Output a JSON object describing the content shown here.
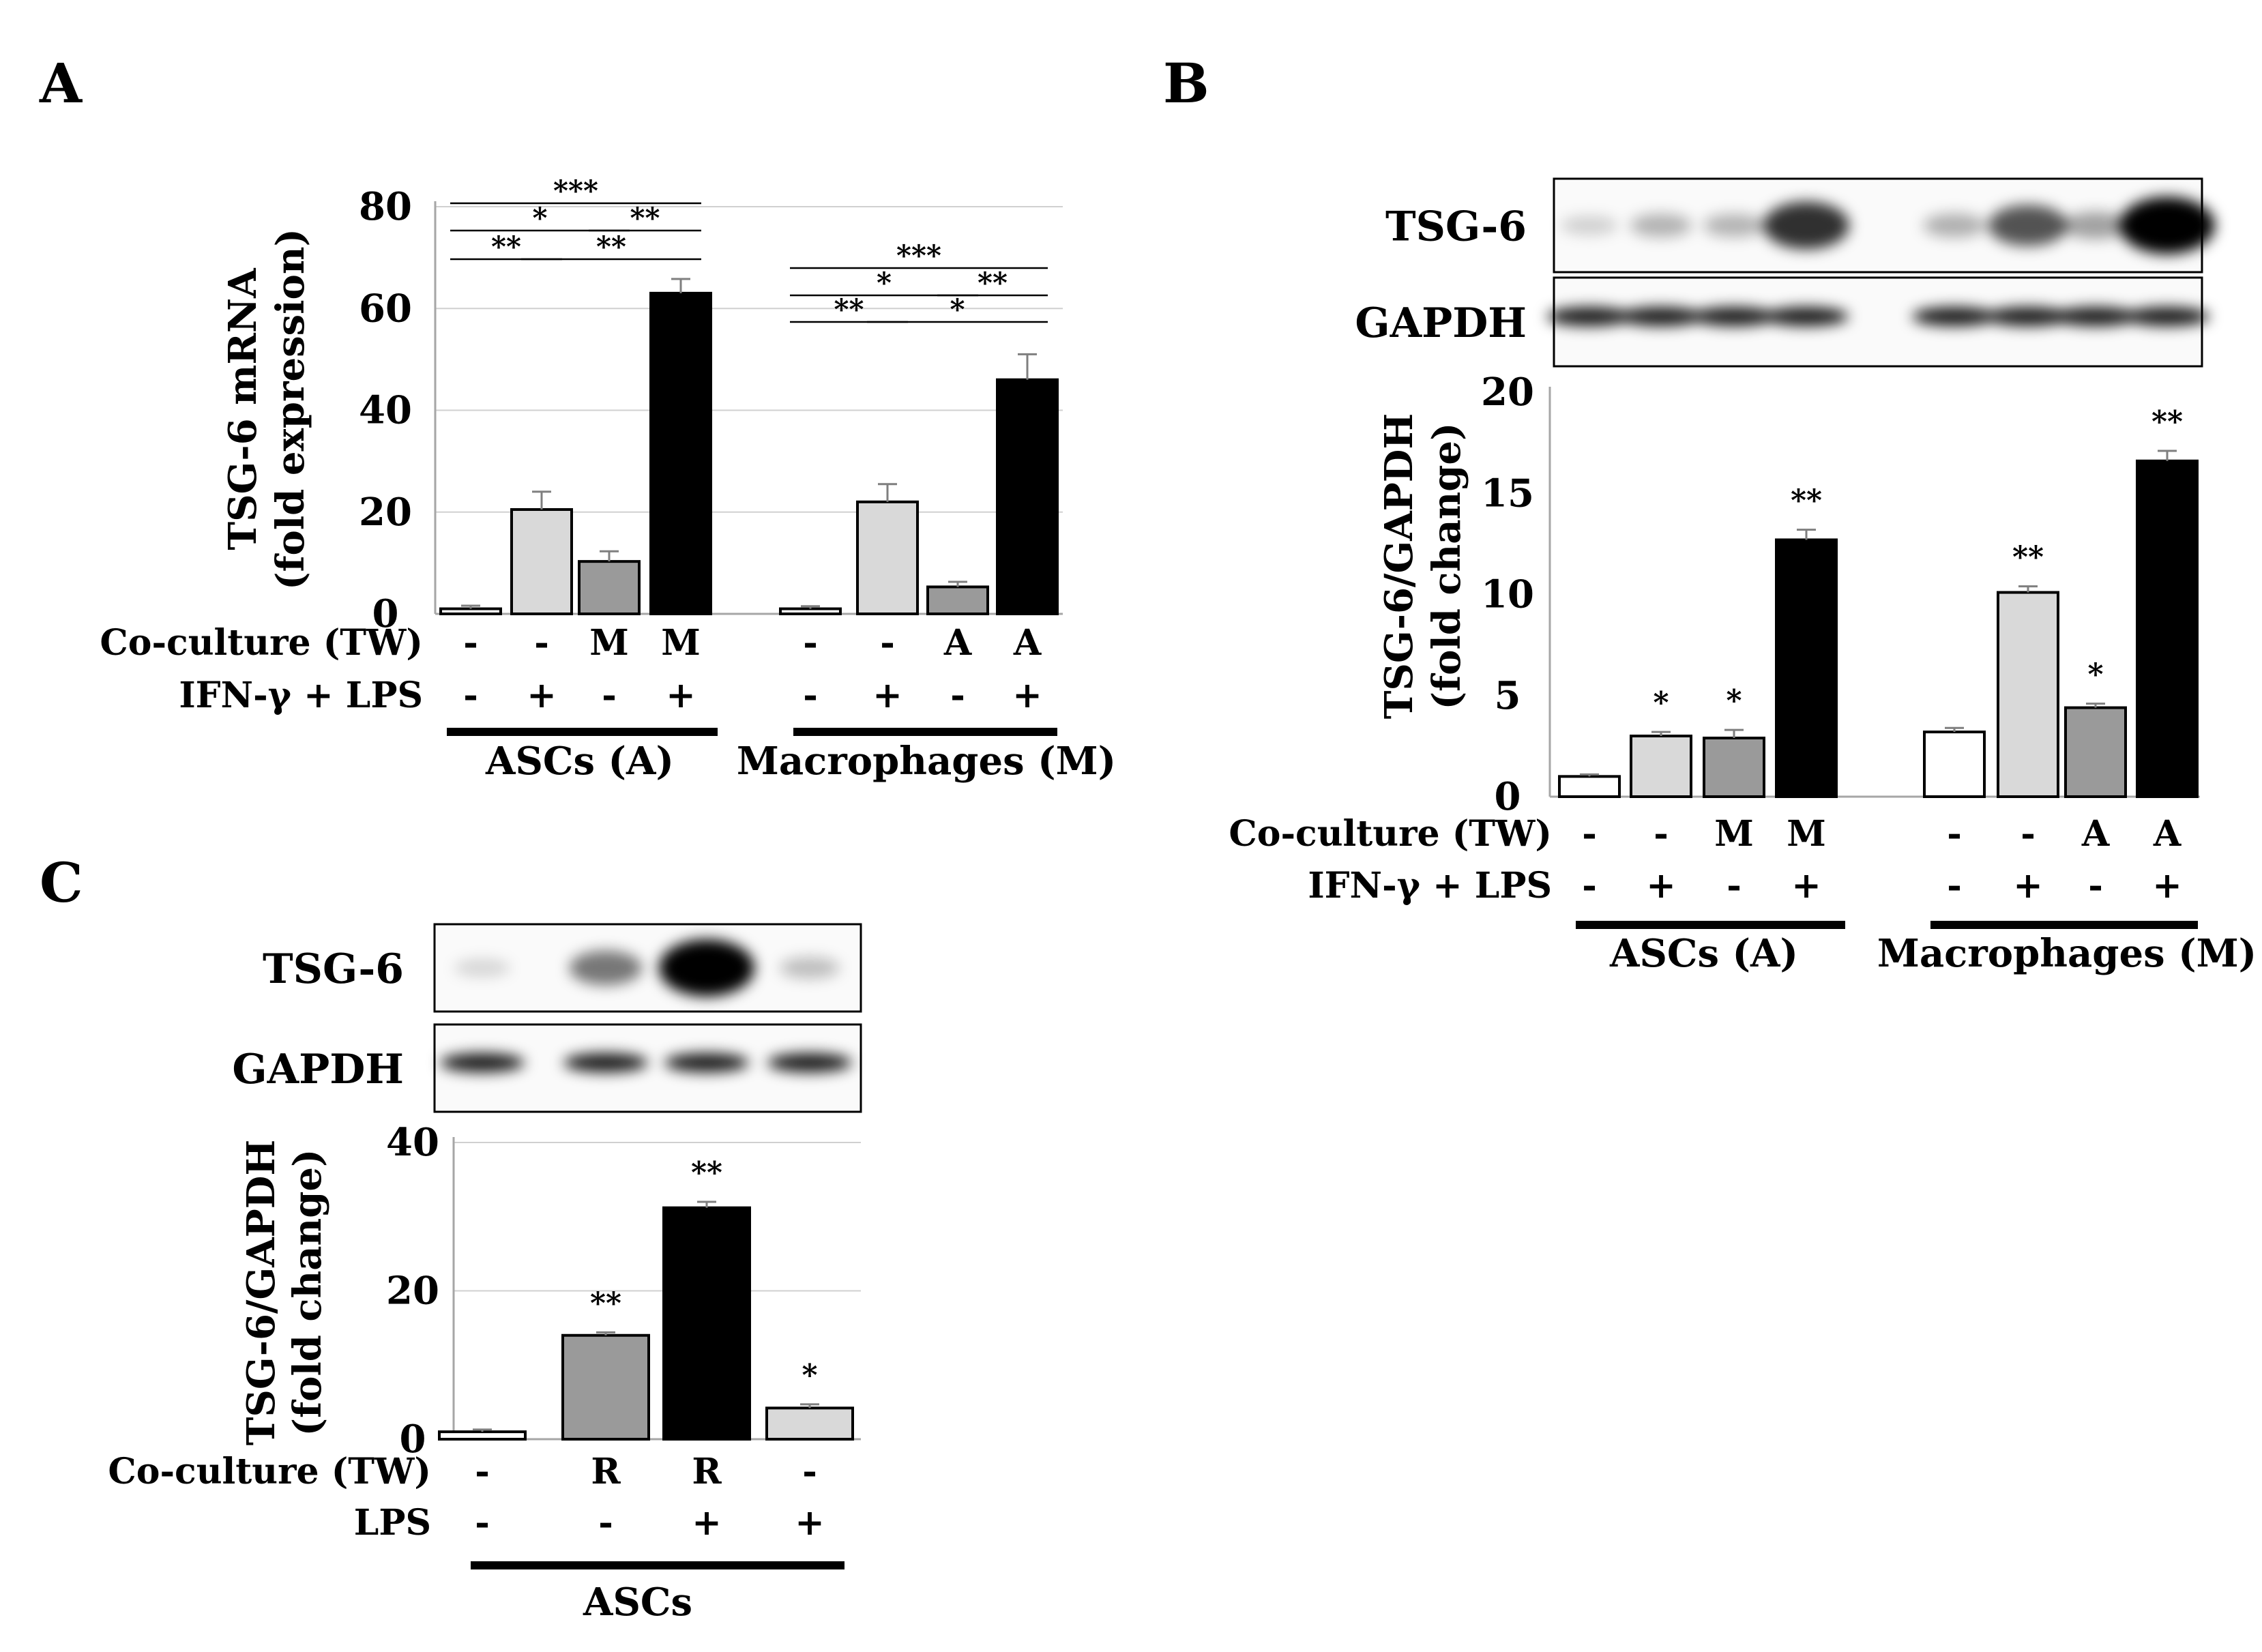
{
  "chart_data": [
    {
      "panel_label": "A",
      "type": "bar",
      "ylabel": [
        "TSG-6 mRNA",
        "(fold expression)"
      ],
      "ylim": [
        0,
        80
      ],
      "yticks": [
        0,
        20,
        40,
        60,
        80
      ],
      "grid": true,
      "row_labels": [
        "Co-culture (TW)",
        "IFN-γ + LPS"
      ],
      "groups": [
        {
          "name": "ASCs (A)",
          "bars": [
            {
              "coculture": "-",
              "treatment": "-",
              "value": 1.0,
              "error": 0.6,
              "color": "#ffffff"
            },
            {
              "coculture": "-",
              "treatment": "+",
              "value": 20.5,
              "error": 3.5,
              "color": "#d9d9d9"
            },
            {
              "coculture": "M",
              "treatment": "-",
              "value": 10.3,
              "error": 2.0,
              "color": "#9a9a9a"
            },
            {
              "coculture": "M",
              "treatment": "+",
              "value": 63.0,
              "error": 2.8,
              "color": "#000000"
            }
          ],
          "significance": [
            "***",
            "*",
            "**",
            "**",
            "**"
          ]
        },
        {
          "name": "Macrophages (M)",
          "bars": [
            {
              "coculture": "-",
              "treatment": "-",
              "value": 1.0,
              "error": 0.5,
              "color": "#ffffff"
            },
            {
              "coculture": "-",
              "treatment": "+",
              "value": 22.0,
              "error": 3.5,
              "color": "#d9d9d9"
            },
            {
              "coculture": "A",
              "treatment": "-",
              "value": 5.3,
              "error": 1.0,
              "color": "#9a9a9a"
            },
            {
              "coculture": "A",
              "treatment": "+",
              "value": 46.0,
              "error": 5.0,
              "color": "#000000"
            }
          ],
          "significance": [
            "***",
            "*",
            "**",
            "**",
            "*"
          ]
        }
      ]
    },
    {
      "panel_label": "B",
      "type": "bar",
      "blot_labels": [
        "TSG-6",
        "GAPDH"
      ],
      "ylabel": [
        "TSG-6/GAPDH",
        "(fold change)"
      ],
      "ylim": [
        0,
        20
      ],
      "yticks": [
        0,
        5,
        10,
        15,
        20
      ],
      "grid": false,
      "row_labels": [
        "Co-culture (TW)",
        "IFN-γ + LPS"
      ],
      "groups": [
        {
          "name": "ASCs (A)",
          "bars": [
            {
              "coculture": "-",
              "treatment": "-",
              "value": 1.0,
              "error": 0.1,
              "color": "#ffffff",
              "sig": ""
            },
            {
              "coculture": "-",
              "treatment": "+",
              "value": 3.0,
              "error": 0.2,
              "color": "#d9d9d9",
              "sig": "*"
            },
            {
              "coculture": "M",
              "treatment": "-",
              "value": 2.9,
              "error": 0.4,
              "color": "#9a9a9a",
              "sig": "*"
            },
            {
              "coculture": "M",
              "treatment": "+",
              "value": 12.7,
              "error": 0.5,
              "color": "#000000",
              "sig": "**"
            }
          ]
        },
        {
          "name": "Macrophages (M)",
          "bars": [
            {
              "coculture": "-",
              "treatment": "-",
              "value": 3.2,
              "error": 0.2,
              "color": "#ffffff",
              "sig": ""
            },
            {
              "coculture": "-",
              "treatment": "+",
              "value": 10.1,
              "error": 0.3,
              "color": "#d9d9d9",
              "sig": "**"
            },
            {
              "coculture": "A",
              "treatment": "-",
              "value": 4.4,
              "error": 0.2,
              "color": "#9a9a9a",
              "sig": "*"
            },
            {
              "coculture": "A",
              "treatment": "+",
              "value": 16.6,
              "error": 0.5,
              "color": "#000000",
              "sig": "**"
            }
          ]
        }
      ]
    },
    {
      "panel_label": "C",
      "type": "bar",
      "blot_labels": [
        "TSG-6",
        "GAPDH"
      ],
      "ylabel": [
        "TSG-6/GAPDH",
        "(fold change)"
      ],
      "ylim": [
        0,
        40
      ],
      "yticks": [
        0,
        20,
        40
      ],
      "grid": true,
      "row_labels": [
        "Co-culture (TW)",
        "LPS"
      ],
      "groups": [
        {
          "name": "ASCs",
          "bars": [
            {
              "coculture": "-",
              "treatment": "-",
              "value": 1.0,
              "error": 0.3,
              "color": "#ffffff",
              "sig": ""
            },
            {
              "coculture": "R",
              "treatment": "-",
              "value": 14.0,
              "error": 0.4,
              "color": "#9a9a9a",
              "sig": "**"
            },
            {
              "coculture": "R",
              "treatment": "+",
              "value": 31.2,
              "error": 0.8,
              "color": "#000000",
              "sig": "**"
            },
            {
              "coculture": "-",
              "treatment": "+",
              "value": 4.2,
              "error": 0.5,
              "color": "#d9d9d9",
              "sig": "*"
            }
          ]
        }
      ]
    }
  ]
}
